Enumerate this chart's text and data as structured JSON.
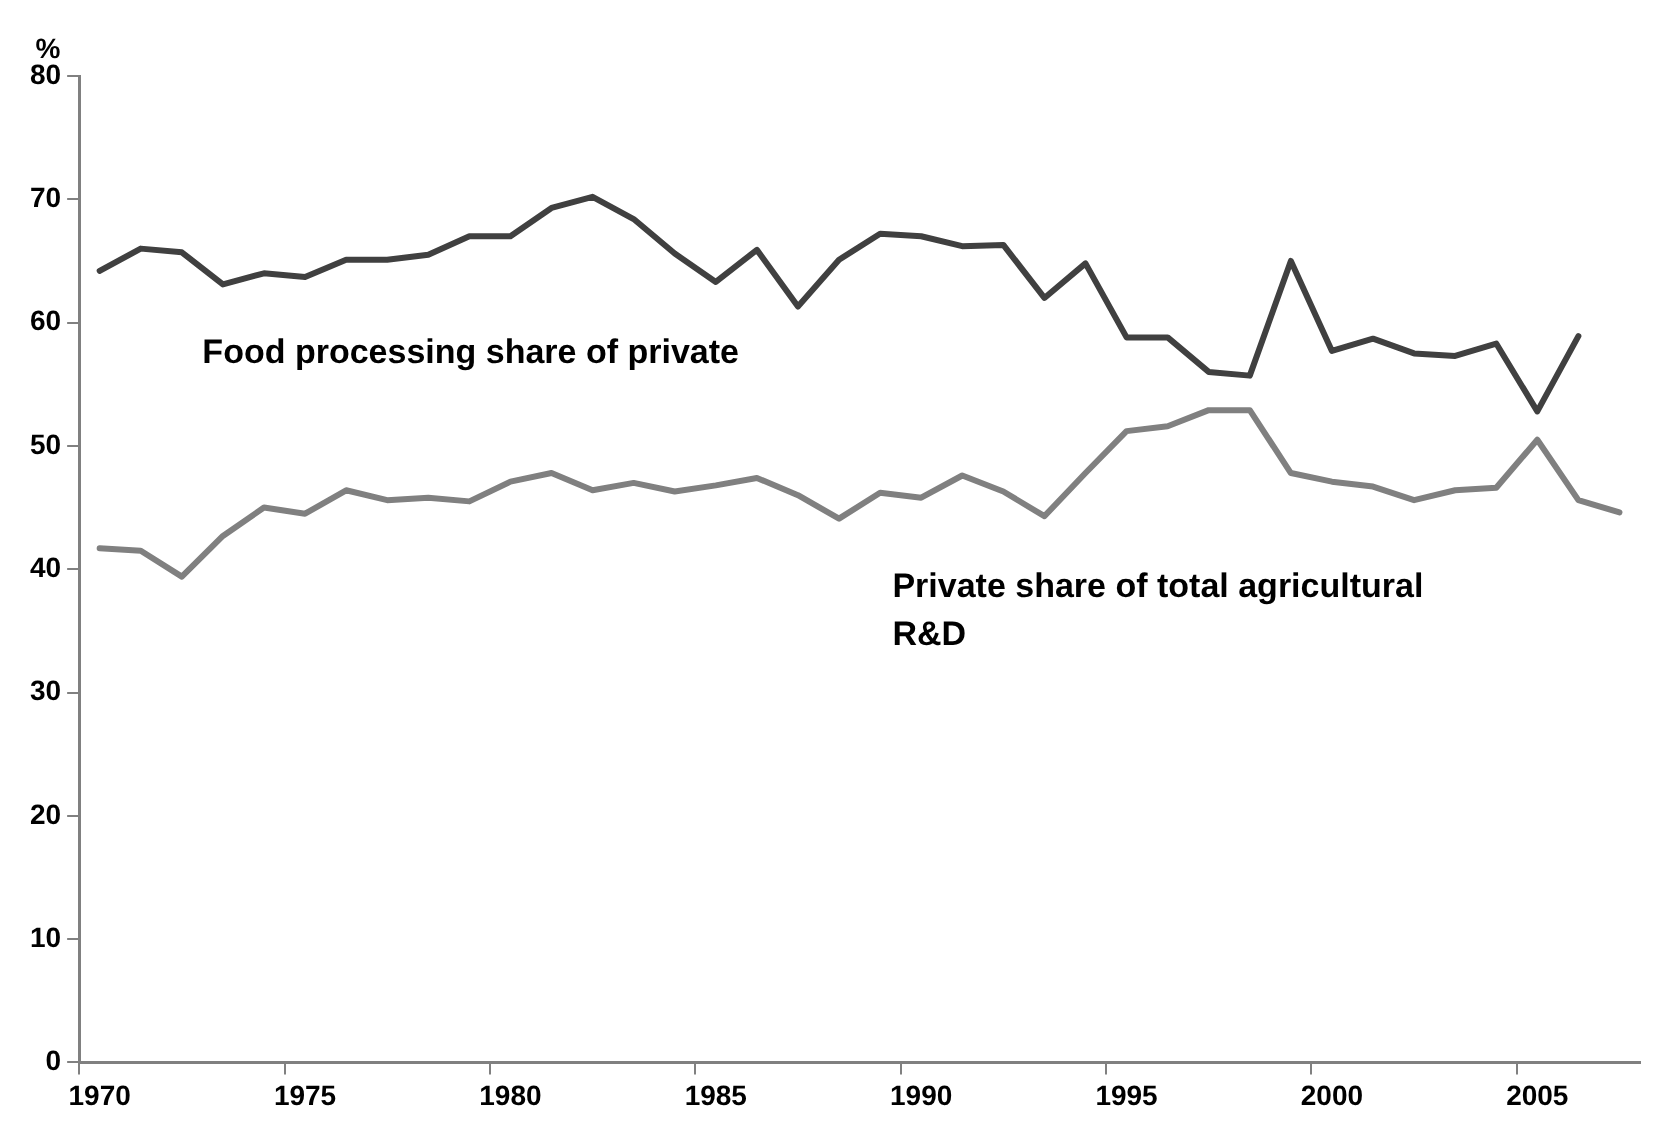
{
  "chart_data": {
    "type": "line",
    "ylabel": "%",
    "categories": [
      "1970",
      null,
      null,
      null,
      null,
      "1975",
      null,
      null,
      null,
      null,
      "1980",
      null,
      null,
      null,
      null,
      "1985",
      null,
      null,
      null,
      null,
      "1990",
      null,
      null,
      null,
      null,
      "1995",
      null,
      null,
      null,
      null,
      "2000",
      null,
      null,
      null,
      null,
      "2005",
      null,
      null
    ],
    "series": [
      {
        "name": "Food processing share of private",
        "color": "#404040",
        "values": [
          64.2,
          66.0,
          65.7,
          63.1,
          64.0,
          63.7,
          65.1,
          65.1,
          65.5,
          67.0,
          67.0,
          69.3,
          70.2,
          68.4,
          65.6,
          63.3,
          65.9,
          61.3,
          65.1,
          67.2,
          67.0,
          66.2,
          66.3,
          62.0,
          64.8,
          58.8,
          58.8,
          56.0,
          55.7,
          65.0,
          57.7,
          58.7,
          57.5,
          57.3,
          58.3,
          52.8,
          58.9,
          null
        ]
      },
      {
        "name": "Private share of total agricultural R&D",
        "color": "#808080",
        "values": [
          41.7,
          41.5,
          39.4,
          42.7,
          45.0,
          44.5,
          46.4,
          45.6,
          45.8,
          45.5,
          47.1,
          47.8,
          46.4,
          47.0,
          46.3,
          46.8,
          47.4,
          46.0,
          44.1,
          46.2,
          45.8,
          47.6,
          46.3,
          44.3,
          47.8,
          51.2,
          51.6,
          52.9,
          52.9,
          47.8,
          47.1,
          46.7,
          45.6,
          46.4,
          46.6,
          50.5,
          45.6,
          44.6
        ]
      }
    ],
    "ylim": [
      0,
      80
    ],
    "yticks": [
      0,
      10,
      20,
      30,
      40,
      50,
      60,
      70,
      80
    ],
    "grid": false,
    "legend": false,
    "marker": "none",
    "line_style": "solid"
  }
}
